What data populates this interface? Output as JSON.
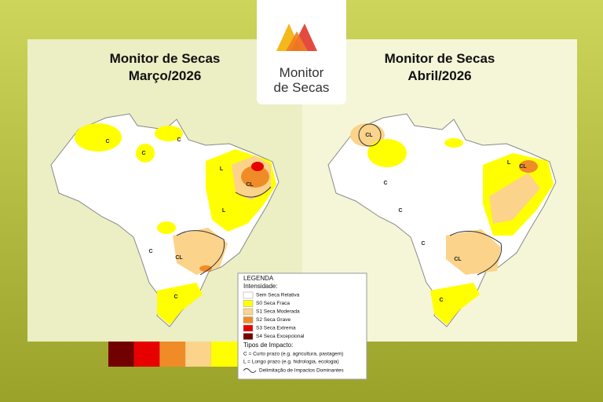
{
  "logo": {
    "line1": "Monitor",
    "line2": "de Secas"
  },
  "maps": [
    {
      "title": "Monitor de Secas",
      "subtitle": "Março/2026",
      "labels": [
        "C",
        "C",
        "C",
        "L",
        "CL",
        "L",
        "C",
        "CL",
        "C"
      ]
    },
    {
      "title": "Monitor de Secas",
      "subtitle": "Abril/2026",
      "labels": [
        "CL",
        "C",
        "C",
        "L",
        "CL",
        "C",
        "CL",
        "C"
      ]
    }
  ],
  "legend": {
    "title": "LEGENDA",
    "intensity_title": "Intensidade:",
    "items": [
      {
        "label": "Sem Seca Relativa",
        "color": "#ffffff"
      },
      {
        "label": "S0 Seca Fraca",
        "color": "#ffff00"
      },
      {
        "label": "S1 Seca Moderada",
        "color": "#fcd38a"
      },
      {
        "label": "S2 Seca Grave",
        "color": "#f08c28"
      },
      {
        "label": "S3 Seca Extrema",
        "color": "#e60000"
      },
      {
        "label": "S4 Seca Excepcional",
        "color": "#730000"
      }
    ],
    "impact_title": "Tipos de Impacto:",
    "impact_short": "C = Curto prazo (e.g. agricultura, pastagem)",
    "impact_long": "L = Longo prazo (e.g. hidrologia, ecologia)",
    "boundary": "Delimitação de Impactos Dominantes"
  }
}
